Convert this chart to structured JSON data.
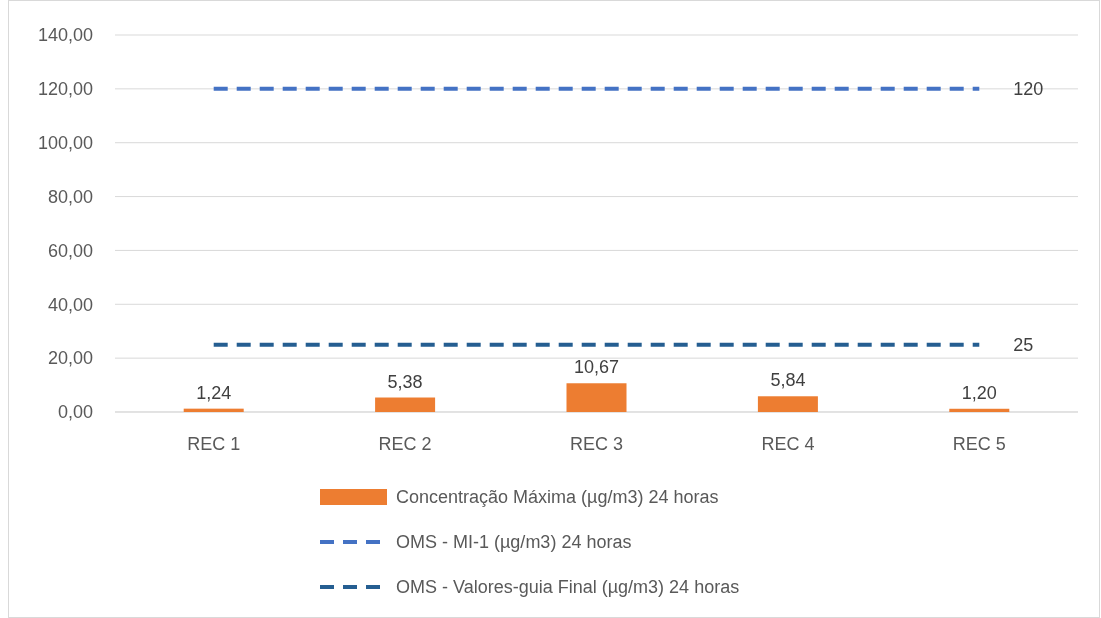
{
  "chart_data": {
    "type": "bar",
    "categories": [
      "REC 1",
      "REC 2",
      "REC 3",
      "REC 4",
      "REC 5"
    ],
    "series": [
      {
        "name": "Concentração Máxima (µg/m3) 24 horas",
        "color": "#ed7d31",
        "values": [
          1.24,
          5.38,
          10.67,
          5.84,
          1.2
        ],
        "value_labels": [
          "1,24",
          "5,38",
          "10,67",
          "5,84",
          "1,20"
        ]
      },
      {
        "name": "OMS - MI-1 (µg/m3) 24 horas",
        "type": "line",
        "line_style": "dashed",
        "color": "#4472c4",
        "values": [
          120,
          120,
          120,
          120,
          120
        ],
        "value_labels": [
          null,
          null,
          null,
          null,
          "120"
        ]
      },
      {
        "name": "OMS - Valores-guia Final (µg/m3) 24 horas",
        "type": "line",
        "line_style": "dashed",
        "color": "#255e91",
        "values": [
          25,
          25,
          25,
          25,
          25
        ],
        "value_labels": [
          null,
          null,
          null,
          null,
          "25"
        ]
      }
    ],
    "ylim": [
      0,
      140
    ],
    "yticks": [
      {
        "value": 0,
        "label": "0,00"
      },
      {
        "value": 20,
        "label": "20,00"
      },
      {
        "value": 40,
        "label": "40,00"
      },
      {
        "value": 60,
        "label": "60,00"
      },
      {
        "value": 80,
        "label": "80,00"
      },
      {
        "value": 100,
        "label": "100,00"
      },
      {
        "value": 120,
        "label": "120,00"
      },
      {
        "value": 140,
        "label": "140,00"
      }
    ],
    "grid": "y",
    "legend": "bottom"
  }
}
